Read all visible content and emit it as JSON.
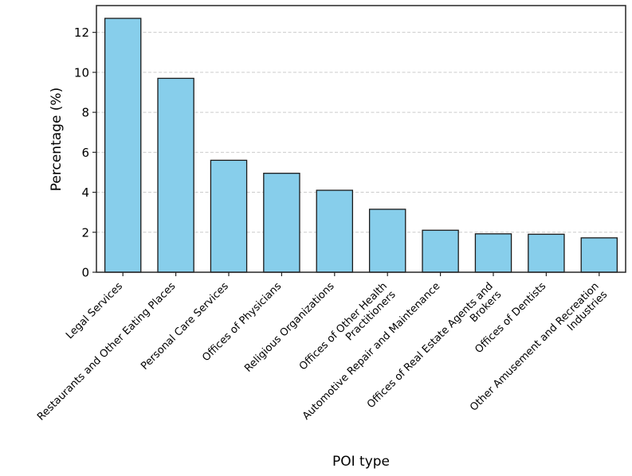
{
  "chart_data": {
    "type": "bar",
    "title": "",
    "xlabel": "POI type",
    "ylabel": "Percentage (%)",
    "categories": [
      "Legal Services",
      "Restaurants and Other Eating Places",
      "Personal Care Services",
      "Offices of Physicians",
      "Religious Organizations",
      "Offices of Other Health\nPractitioners",
      "Automotive Repair and Maintenance",
      "Offices of Real Estate Agents and\nBrokers",
      "Offices of Dentists",
      "Other Amusement and Recreation\nIndustries"
    ],
    "values": [
      12.7,
      9.7,
      5.6,
      4.95,
      4.1,
      3.15,
      2.1,
      1.92,
      1.9,
      1.72
    ],
    "yticks": [
      0,
      2,
      4,
      6,
      8,
      10,
      12
    ],
    "ylim": [
      0,
      13.34
    ],
    "xtick_rotation_degrees": 45,
    "legend": "none",
    "grid": "horizontal dashed",
    "colors": {
      "bar_fill": "#87CEEB",
      "bar_edge": "#1a1a1a",
      "grid_line": "#cccccc",
      "spine": "#262626",
      "text": "#000000",
      "background": "#ffffff"
    }
  }
}
